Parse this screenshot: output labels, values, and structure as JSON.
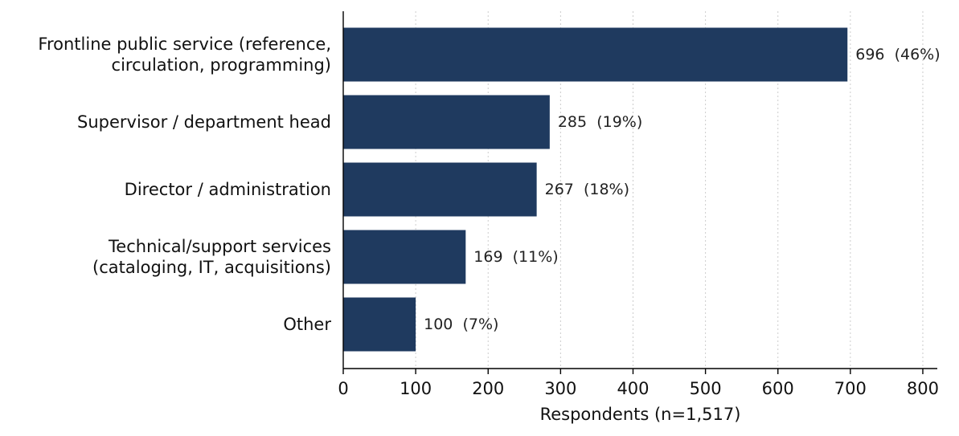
{
  "chart_data": {
    "type": "bar",
    "orientation": "horizontal",
    "categories": [
      [
        "Frontline public service (reference,",
        "circulation, programming)"
      ],
      [
        "Supervisor / department head"
      ],
      [
        "Director / administration"
      ],
      [
        "Technical/support services",
        "(cataloging, IT, acquisitions)"
      ],
      [
        "Other"
      ]
    ],
    "values": [
      696,
      285,
      267,
      169,
      100
    ],
    "data_labels": [
      "696  (46%)",
      "285  (19%)",
      "267  (18%)",
      "169  (11%)",
      "100  (7%)"
    ],
    "xlabel": "Respondents (n=1,517)",
    "ylabel": "",
    "title": "",
    "xlim": [
      0,
      820
    ],
    "xticks": [
      0,
      100,
      200,
      300,
      400,
      500,
      600,
      700,
      800
    ],
    "grid": "x-dotted",
    "bar_color": "#1f3a5f",
    "grid_color": "#cccccc"
  }
}
